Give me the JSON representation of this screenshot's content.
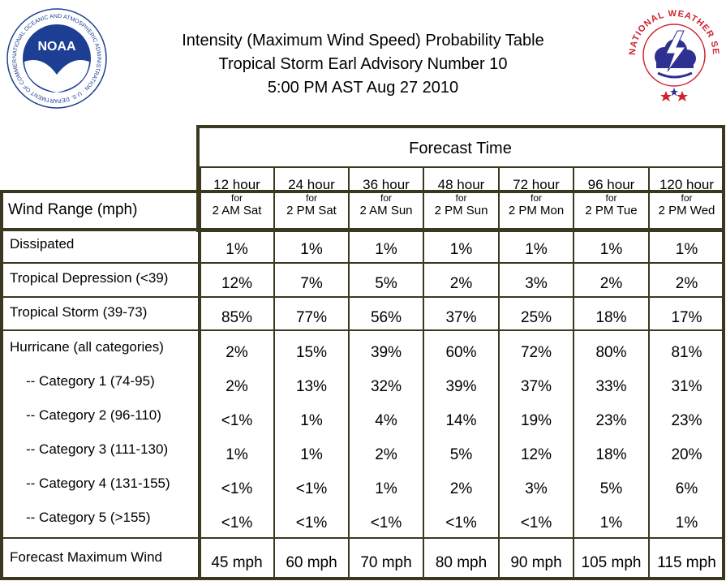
{
  "header": {
    "line1": "Intensity (Maximum Wind Speed) Probability Table",
    "line2": "Tropical Storm Earl Advisory Number 10",
    "line3": "5:00 PM AST Aug 27 2010"
  },
  "logos": {
    "noaa": {
      "text": "NOAA",
      "ring": "NATIONAL OCEANIC AND ATMOSPHERIC ADMINISTRATION · U.S. DEPARTMENT OF COMMERCE"
    },
    "nws": {
      "ring": "NATIONAL WEATHER SERVICE"
    }
  },
  "colors": {
    "border": "#3c3820",
    "noaa_blue": "#1c3f94",
    "nws_red": "#d0222f",
    "nws_navy": "#2e3192"
  },
  "table": {
    "forecast_time_label": "Forecast Time",
    "wind_range_label": "Wind Range (mph)",
    "columns": [
      {
        "hours": "12 hour",
        "for": "for",
        "time": "2 AM Sat"
      },
      {
        "hours": "24 hour",
        "for": "for",
        "time": "2 PM Sat"
      },
      {
        "hours": "36 hour",
        "for": "for",
        "time": "2 AM Sun"
      },
      {
        "hours": "48 hour",
        "for": "for",
        "time": "2 PM Sun"
      },
      {
        "hours": "72 hour",
        "for": "for",
        "time": "2 PM Mon"
      },
      {
        "hours": "96 hour",
        "for": "for",
        "time": "2 PM Tue"
      },
      {
        "hours": "120 hour",
        "for": "for",
        "time": "2 PM Wed"
      }
    ],
    "rows": [
      {
        "label": "Dissipated",
        "values": [
          "1%",
          "1%",
          "1%",
          "1%",
          "1%",
          "1%",
          "1%"
        ]
      },
      {
        "label": "Tropical Depression (<39)",
        "values": [
          "12%",
          "7%",
          "5%",
          "2%",
          "3%",
          "2%",
          "2%"
        ]
      },
      {
        "label": "Tropical Storm (39-73)",
        "values": [
          "85%",
          "77%",
          "56%",
          "37%",
          "25%",
          "18%",
          "17%"
        ]
      },
      {
        "label": "Hurricane (all categories)",
        "values": [
          "2%",
          "15%",
          "39%",
          "60%",
          "72%",
          "80%",
          "81%"
        ]
      },
      {
        "label": "-- Category 1 (74-95)",
        "values": [
          "2%",
          "13%",
          "32%",
          "39%",
          "37%",
          "33%",
          "31%"
        ]
      },
      {
        "label": "-- Category 2 (96-110)",
        "values": [
          "<1%",
          "1%",
          "4%",
          "14%",
          "19%",
          "23%",
          "23%"
        ]
      },
      {
        "label": "-- Category 3 (111-130)",
        "values": [
          "1%",
          "1%",
          "2%",
          "5%",
          "12%",
          "18%",
          "20%"
        ]
      },
      {
        "label": "-- Category 4 (131-155)",
        "values": [
          "<1%",
          "<1%",
          "1%",
          "2%",
          "3%",
          "5%",
          "6%"
        ]
      },
      {
        "label": "-- Category 5 (>155)",
        "values": [
          "<1%",
          "<1%",
          "<1%",
          "<1%",
          "<1%",
          "1%",
          "1%"
        ]
      },
      {
        "label": "Forecast Maximum Wind",
        "values": [
          "45 mph",
          "60 mph",
          "70 mph",
          "80 mph",
          "90 mph",
          "105 mph",
          "115 mph"
        ]
      }
    ]
  }
}
